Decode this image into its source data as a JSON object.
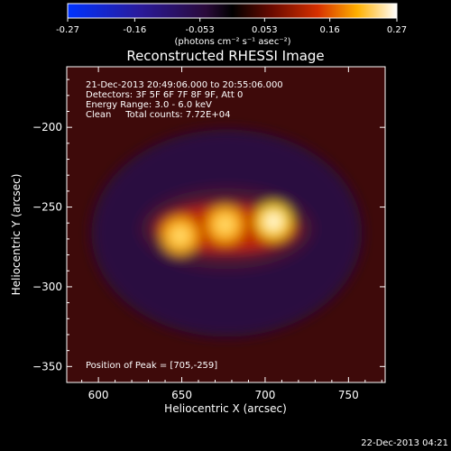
{
  "colorbar": {
    "ticks": [
      "-0.27",
      "-0.16",
      "-0.053",
      "0.053",
      "0.16",
      "0.27"
    ],
    "tick_values": [
      -0.27,
      -0.16,
      -0.053,
      0.053,
      0.16,
      0.27
    ],
    "range": [
      -0.27,
      0.27
    ],
    "units": "(photons cm⁻² s⁻¹ asec⁻²)"
  },
  "chart_data": {
    "type": "heatmap",
    "title": "Reconstructed RHESSI Image",
    "xlabel": "Heliocentric X (arcsec)",
    "ylabel": "Heliocentric Y (arcsec)",
    "xlim": [
      581,
      772
    ],
    "ylim": [
      -360,
      -162
    ],
    "xticks": [
      600,
      650,
      700,
      750
    ],
    "yticks": [
      -200,
      -250,
      -300,
      -350
    ],
    "xtick_labels": [
      "600",
      "650",
      "700",
      "750"
    ],
    "ytick_labels": [
      "−200",
      "−250",
      "−300",
      "−350"
    ],
    "annotations": [
      "21-Dec-2013 20:49:06.000 to 20:55:06.000",
      "Detectors: 3F 5F 6F 7F 8F 9F, Att 0",
      "Energy Range: 3.0 - 6.0 keV",
      "Clean     Total counts: 7.72E+04"
    ],
    "peak_label": "Position of Peak = [705,-259]",
    "peak": [
      705,
      -259
    ],
    "sources": [
      {
        "x": 649,
        "y": -268,
        "amplitude": 0.22
      },
      {
        "x": 676,
        "y": -261,
        "amplitude": 0.25
      },
      {
        "x": 705,
        "y": -259,
        "amplitude": 0.27
      }
    ],
    "background_level": 0.08
  },
  "footer": {
    "timestamp": "22-Dec-2013 04:21"
  }
}
